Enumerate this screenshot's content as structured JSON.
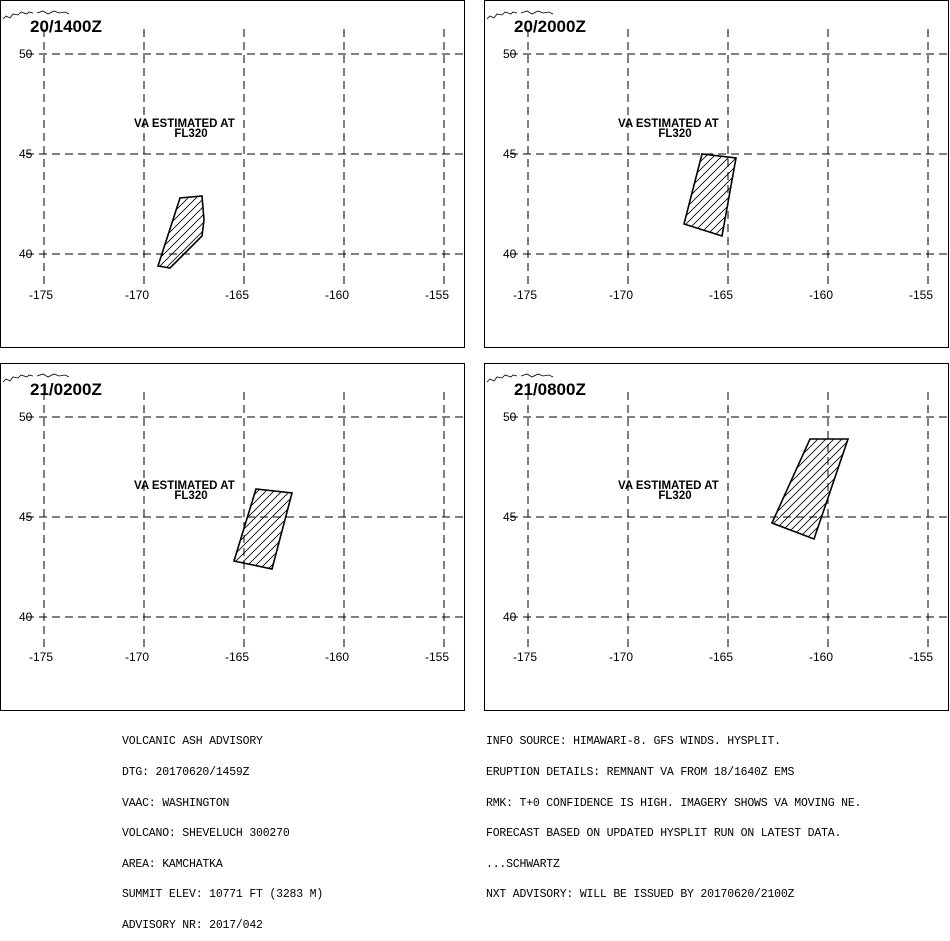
{
  "map": {
    "lon_ticks": [
      "-175",
      "-170",
      "-165",
      "-160",
      "-155"
    ],
    "lat_ticks": [
      "50",
      "45",
      "40"
    ],
    "lon_range": [
      -175,
      -155
    ],
    "lat_range": [
      40,
      50
    ],
    "grid": "dashed",
    "hatch": "diagonal"
  },
  "panels": [
    {
      "title": "20/1400Z",
      "va_label": "VA ESTIMATED AT",
      "fl_label": "FL320",
      "polygon": [
        [
          -169.3,
          39.4
        ],
        [
          -168.7,
          39.3
        ],
        [
          -167.1,
          40.9
        ],
        [
          -167.0,
          41.7
        ],
        [
          -167.1,
          42.9
        ],
        [
          -168.2,
          42.8
        ]
      ]
    },
    {
      "title": "20/2000Z",
      "va_label": "VA ESTIMATED AT",
      "fl_label": "FL320",
      "polygon": [
        [
          -167.2,
          41.5
        ],
        [
          -166.3,
          45.0
        ],
        [
          -164.6,
          44.8
        ],
        [
          -165.3,
          40.9
        ]
      ]
    },
    {
      "title": "21/0200Z",
      "va_label": "VA ESTIMATED AT",
      "fl_label": "FL320",
      "polygon": [
        [
          -165.5,
          42.8
        ],
        [
          -164.4,
          46.4
        ],
        [
          -162.6,
          46.2
        ],
        [
          -163.6,
          42.4
        ]
      ]
    },
    {
      "title": "21/0800Z",
      "va_label": "VA ESTIMATED AT",
      "fl_label": "FL320",
      "polygon": [
        [
          -162.8,
          44.7
        ],
        [
          -160.9,
          48.9
        ],
        [
          -159.0,
          48.9
        ],
        [
          -160.7,
          43.9
        ]
      ]
    }
  ],
  "advisory_left": [
    "VOLCANIC ASH ADVISORY",
    "DTG: 20170620/1459Z",
    "VAAC: WASHINGTON",
    "VOLCANO: SHEVELUCH 300270",
    "AREA: KAMCHATKA",
    "SUMMIT ELEV: 10771 FT (3283 M)",
    "ADVISORY NR: 2017/042"
  ],
  "advisory_right": [
    "INFO SOURCE: HIMAWARI-8. GFS WINDS. HYSPLIT.",
    "ERUPTION DETAILS: REMNANT VA FROM 18/1640Z EMS",
    "RMK: T+0 CONFIDENCE IS HIGH. IMAGERY SHOWS VA MOVING NE.",
    "FORECAST BASED ON UPDATED HYSPLIT RUN ON LATEST DATA.",
    "...SCHWARTZ",
    "NXT ADVISORY: WILL BE ISSUED BY 20170620/2100Z"
  ]
}
